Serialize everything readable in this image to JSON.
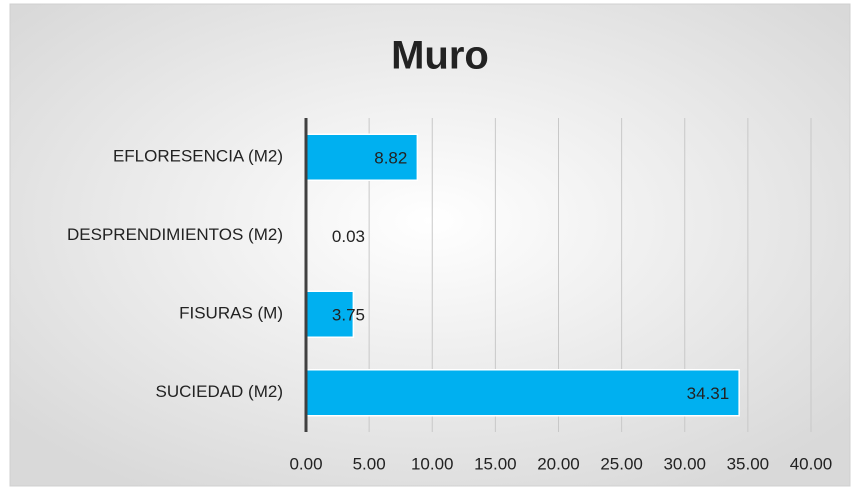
{
  "chart_data": {
    "type": "bar",
    "orientation": "horizontal",
    "title": "Muro",
    "categories": [
      "EFLORESENCIA (M2)",
      "DESPRENDIMIENTOS (M2)",
      "FISURAS (M)",
      "SUCIEDAD (M2)"
    ],
    "values": [
      8.82,
      0.03,
      3.75,
      34.31
    ],
    "color": "#00b0f0",
    "xlim": [
      0,
      40
    ],
    "xticks": [
      {
        "value": 0,
        "label": "0.00"
      },
      {
        "value": 5,
        "label": "5.00"
      },
      {
        "value": 10,
        "label": "10.00"
      },
      {
        "value": 15,
        "label": "15.00"
      },
      {
        "value": 20,
        "label": "20.00"
      },
      {
        "value": 25,
        "label": "25.00"
      },
      {
        "value": 30,
        "label": "30.00"
      },
      {
        "value": 35,
        "label": "35.00"
      },
      {
        "value": 40,
        "label": "40.00"
      }
    ],
    "grid": true
  }
}
